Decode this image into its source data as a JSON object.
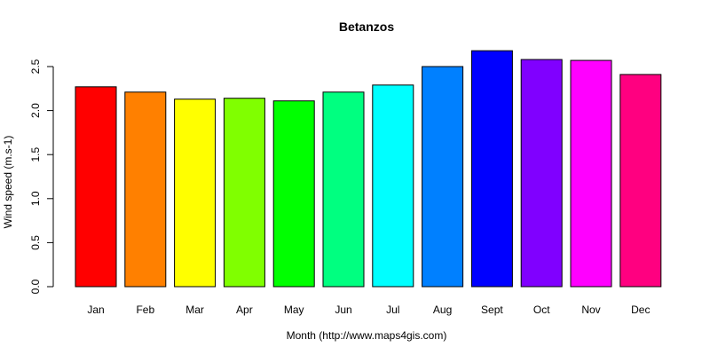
{
  "chart_data": {
    "type": "bar",
    "title": "Betanzos",
    "xlabel": "Month (http://www.maps4gis.com)",
    "ylabel": "Wind speed (m.s-1)",
    "categories": [
      "Jan",
      "Feb",
      "Mar",
      "Apr",
      "May",
      "Jun",
      "Jul",
      "Aug",
      "Sept",
      "Oct",
      "Nov",
      "Dec"
    ],
    "values": [
      2.27,
      2.21,
      2.13,
      2.14,
      2.11,
      2.21,
      2.29,
      2.5,
      2.68,
      2.58,
      2.57,
      2.41
    ],
    "colors": [
      "#FF0000",
      "#FF8000",
      "#FFFF00",
      "#80FF00",
      "#00FF00",
      "#00FF80",
      "#00FFFF",
      "#0080FF",
      "#0000FF",
      "#8000FF",
      "#FF00FF",
      "#FF0080"
    ],
    "ylim": [
      0,
      2.5
    ],
    "yticks": [
      "0.0",
      "0.5",
      "1.0",
      "1.5",
      "2.0",
      "2.5"
    ],
    "grid": false,
    "legend": "none"
  }
}
